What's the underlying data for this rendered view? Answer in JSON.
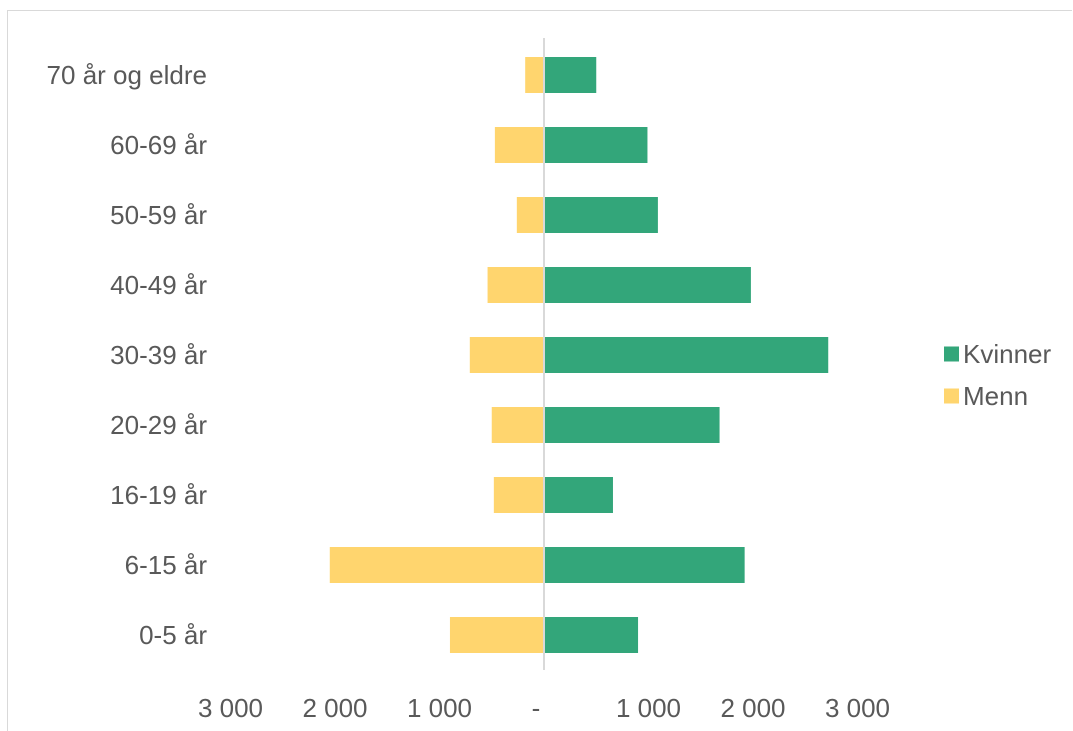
{
  "chart_data": {
    "type": "bar",
    "orientation": "horizontal",
    "layout": "population-pyramid",
    "categories": [
      "0-5 år",
      "6-15 år",
      "16-19 år",
      "20-29 år",
      "30-39 år",
      "40-49 år",
      "50-59 år",
      "60-69 år",
      "70 år og eldre"
    ],
    "series": [
      {
        "name": "Kvinner",
        "color": "#33a67a",
        "values": [
          900,
          1920,
          660,
          1680,
          2720,
          1980,
          1090,
          990,
          500
        ]
      },
      {
        "name": "Menn",
        "color": "#ffd56e",
        "values": [
          900,
          2050,
          480,
          500,
          710,
          540,
          260,
          470,
          180
        ]
      }
    ],
    "xlim": [
      -3000,
      3000
    ],
    "x_ticks": [
      {
        "value": -3000,
        "label": "3 000"
      },
      {
        "value": -2000,
        "label": "2 000"
      },
      {
        "value": -1000,
        "label": "1 000"
      },
      {
        "value": 0,
        "label": "-"
      },
      {
        "value": 1000,
        "label": "1 000"
      },
      {
        "value": 2000,
        "label": "2 000"
      },
      {
        "value": 3000,
        "label": "3 000"
      }
    ],
    "grid": false,
    "legend_position": "right"
  }
}
